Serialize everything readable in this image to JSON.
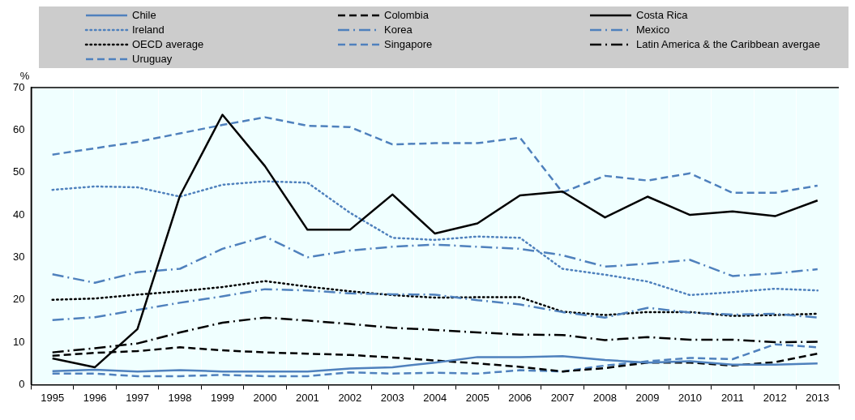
{
  "chart_data": {
    "type": "line",
    "ylabel": "%",
    "categories": [
      "1995",
      "1996",
      "1997",
      "1998",
      "1999",
      "2000",
      "2001",
      "2002",
      "2003",
      "2004",
      "2005",
      "2006",
      "2007",
      "2008",
      "2009",
      "2010",
      "2011",
      "2012",
      "2013"
    ],
    "ylim": [
      0,
      70
    ],
    "yticks": [
      0,
      10,
      20,
      30,
      40,
      50,
      60,
      70
    ],
    "grid": "x",
    "legend": "top",
    "marker": "none",
    "series": [
      {
        "name": "Chile",
        "color": "#4f81bd",
        "line_style": "solid",
        "values": [
          3.2,
          3.5,
          3.1,
          3.4,
          3.1,
          3.1,
          3.1,
          3.8,
          4.1,
          5.2,
          6.5,
          6.5,
          6.7,
          5.8,
          5.2,
          5.5,
          4.7,
          4.7,
          5.0
        ]
      },
      {
        "name": "Colombia",
        "color": "#000000",
        "line_style": "dashed",
        "values": [
          6.8,
          7.5,
          7.9,
          8.8,
          8.1,
          7.6,
          7.3,
          7.0,
          6.4,
          5.7,
          5.0,
          4.2,
          3.1,
          3.9,
          5.2,
          5.2,
          4.5,
          5.3,
          7.3
        ]
      },
      {
        "name": "Costa Rica",
        "color": "#000000",
        "line_style": "solid",
        "values": [
          6.2,
          4.1,
          13.1,
          44.5,
          63.6,
          51.5,
          36.5,
          36.5,
          44.8,
          35.6,
          38.0,
          44.6,
          45.5,
          39.4,
          44.3,
          40.0,
          40.8,
          39.7,
          43.4
        ]
      },
      {
        "name": "Ireland",
        "color": "#4f81bd",
        "line_style": "dotted",
        "values": [
          45.9,
          46.7,
          46.5,
          44.3,
          47.1,
          47.9,
          47.6,
          40.5,
          34.6,
          34.1,
          34.9,
          34.6,
          27.3,
          25.9,
          24.3,
          21.1,
          21.8,
          22.6,
          22.2
        ]
      },
      {
        "name": "Korea",
        "color": "#4f81bd",
        "line_style": "dashdot",
        "values": [
          26.0,
          24.0,
          26.5,
          27.3,
          32.0,
          34.9,
          30.0,
          31.6,
          32.5,
          33.0,
          32.5,
          32.0,
          30.5,
          27.8,
          28.5,
          29.4,
          25.6,
          26.2,
          27.2
        ]
      },
      {
        "name": "Mexico",
        "color": "#4f81bd",
        "line_style": "dashdot",
        "values": [
          15.2,
          15.9,
          17.6,
          19.3,
          20.8,
          22.5,
          22.2,
          21.5,
          21.3,
          21.2,
          19.9,
          18.9,
          17.1,
          15.8,
          18.1,
          17.0,
          16.5,
          16.7,
          15.8
        ]
      },
      {
        "name": "OECD average",
        "color": "#000000",
        "line_style": "dotted",
        "values": [
          20.0,
          20.3,
          21.2,
          22.0,
          23.0,
          24.4,
          23.1,
          22.0,
          21.1,
          20.5,
          20.6,
          20.6,
          17.2,
          16.4,
          17.1,
          17.1,
          16.2,
          16.4,
          16.7
        ]
      },
      {
        "name": "Singapore",
        "color": "#4f81bd",
        "line_style": "dashed",
        "values": [
          54.2,
          55.7,
          57.2,
          59.2,
          61.2,
          63.0,
          61.0,
          60.7,
          56.6,
          56.9,
          56.9,
          58.2,
          45.3,
          49.2,
          48.1,
          49.8,
          45.2,
          45.2,
          46.9
        ]
      },
      {
        "name": "Latin America & the Caribbean avergae",
        "color": "#000000",
        "line_style": "dashdot",
        "values": [
          7.6,
          8.6,
          9.7,
          12.3,
          14.6,
          15.8,
          15.1,
          14.3,
          13.4,
          12.9,
          12.3,
          11.8,
          11.7,
          10.5,
          11.2,
          10.6,
          10.6,
          10.0,
          10.1
        ]
      },
      {
        "name": "Uruguay",
        "color": "#4f81bd",
        "line_style": "dashed",
        "values": [
          2.6,
          2.6,
          2.0,
          2.0,
          2.3,
          2.0,
          2.0,
          2.9,
          2.6,
          2.8,
          2.6,
          3.4,
          3.1,
          4.5,
          5.5,
          6.3,
          6.0,
          9.5,
          8.8
        ]
      }
    ]
  }
}
